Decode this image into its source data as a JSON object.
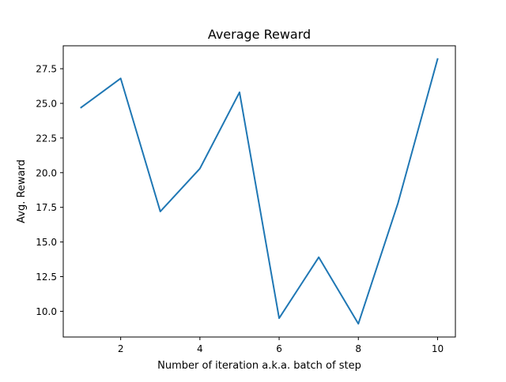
{
  "chart_data": {
    "type": "line",
    "title": "Average Reward",
    "xlabel": "Number of iteration a.k.a. batch of step",
    "ylabel": "Avg. Reward",
    "x": [
      1,
      2,
      3,
      4,
      5,
      6,
      7,
      8,
      9,
      10
    ],
    "series": [
      {
        "values": [
          24.7,
          26.8,
          17.2,
          20.3,
          25.8,
          9.5,
          13.9,
          9.1,
          17.8,
          28.2
        ],
        "color": "#1f77b4"
      }
    ],
    "xticks": [
      "2",
      "4",
      "6",
      "8",
      "10"
    ],
    "yticks": [
      "10.0",
      "12.5",
      "15.0",
      "17.5",
      "20.0",
      "22.5",
      "25.0",
      "27.5"
    ],
    "xlim": [
      0.55,
      10.45
    ],
    "ylim": [
      8.145,
      29.155
    ],
    "grid": false,
    "legend": "none"
  }
}
